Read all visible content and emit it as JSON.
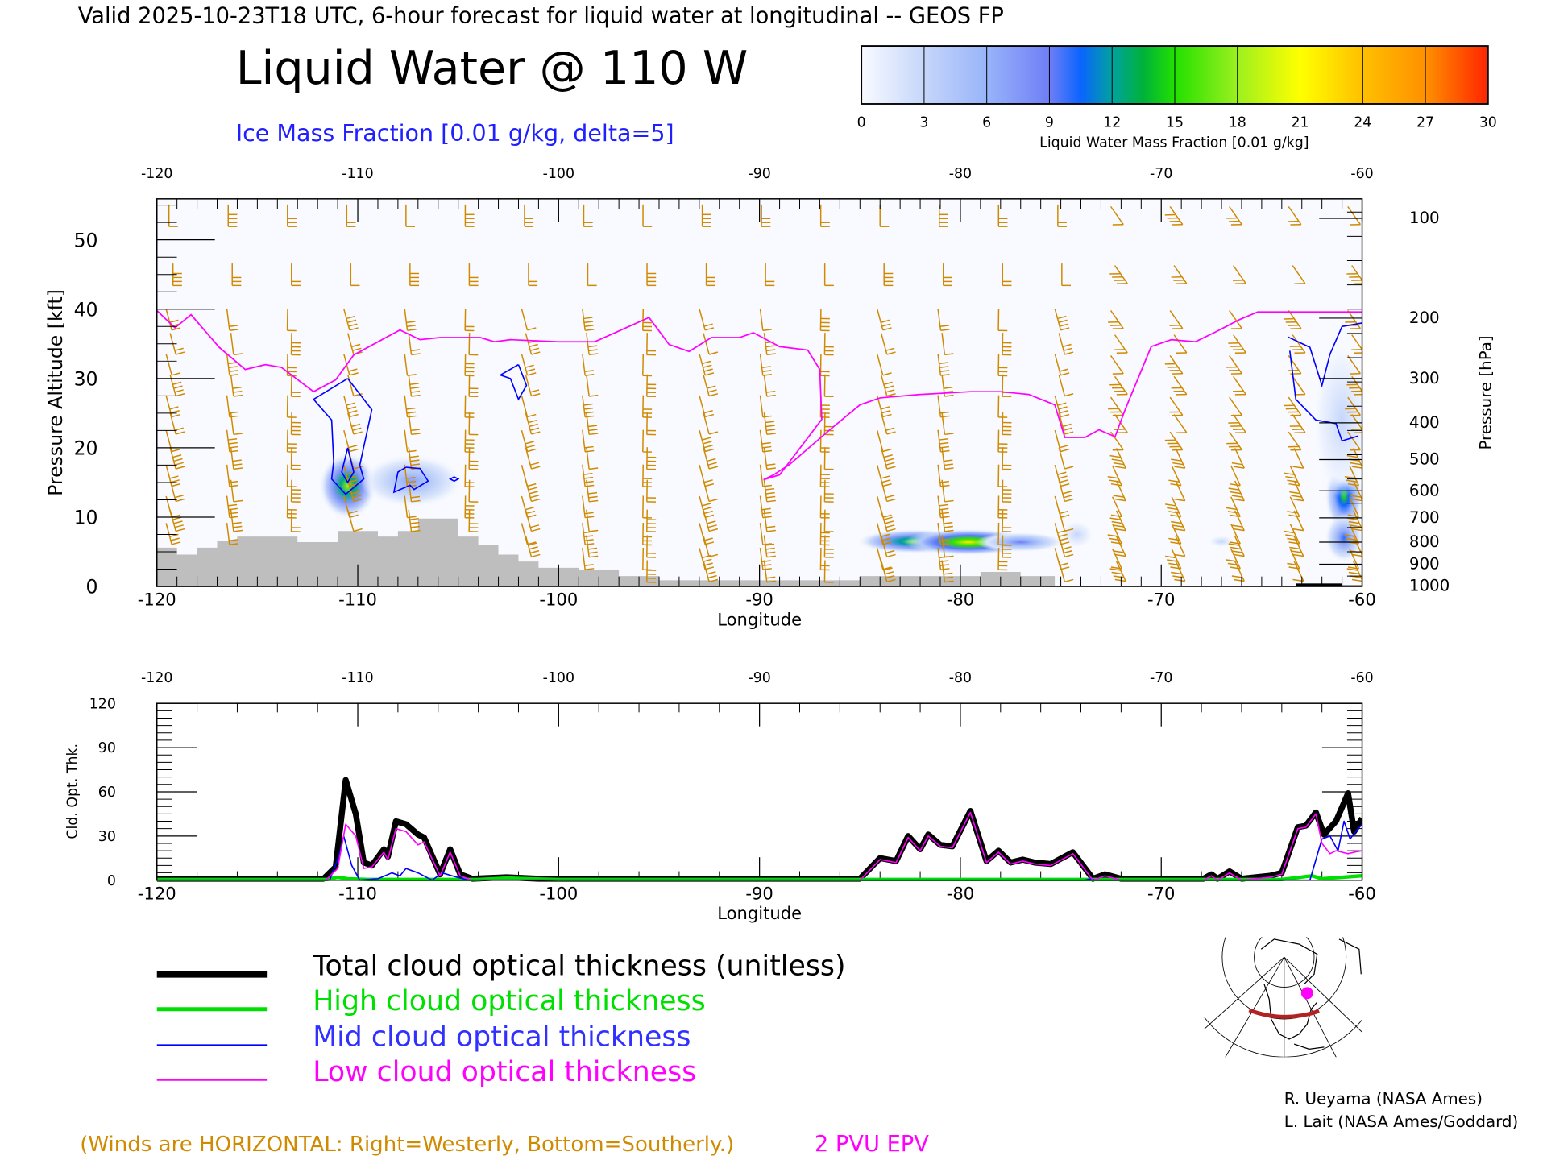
{
  "header": {
    "valid_line": "Valid 2025-10-23T18 UTC, 6-hour forecast for liquid water at longitudinal -- GEOS FP",
    "title": "Liquid Water @ 110 W",
    "subtitle": "Ice Mass Fraction [0.01 g/kg, delta=5]"
  },
  "colorbar": {
    "ticks": [
      "0",
      "3",
      "6",
      "9",
      "12",
      "15",
      "18",
      "21",
      "24",
      "27",
      "30"
    ],
    "label": "Liquid Water Mass Fraction [0.01 g/kg]",
    "stops": [
      {
        "v": 0,
        "c": "#f8faff"
      },
      {
        "v": 3,
        "c": "#c6d6fa"
      },
      {
        "v": 6,
        "c": "#98b4fa"
      },
      {
        "v": 9,
        "c": "#6f7ef6"
      },
      {
        "v": 10.5,
        "c": "#0a64ff"
      },
      {
        "v": 12,
        "c": "#00a2a0"
      },
      {
        "v": 13.5,
        "c": "#00b23a"
      },
      {
        "v": 15,
        "c": "#22e000"
      },
      {
        "v": 18,
        "c": "#9cf01e"
      },
      {
        "v": 21,
        "c": "#ffff00"
      },
      {
        "v": 24,
        "c": "#ffc000"
      },
      {
        "v": 27,
        "c": "#ff9000"
      },
      {
        "v": 30,
        "c": "#ff2400"
      }
    ]
  },
  "chart_data": [
    {
      "type": "heatmap",
      "title": "Liquid Water @ 110 W",
      "xlabel": "Longitude",
      "ylabel": "Pressure Altitude [kft]",
      "y2label": "Pressure [hPa]",
      "xlim": [
        -120,
        -60
      ],
      "ylim": [
        0,
        56
      ],
      "x_ticks": [
        "-120",
        "-110",
        "-100",
        "-90",
        "-80",
        "-70",
        "-60"
      ],
      "y_ticks": [
        "0",
        "10",
        "20",
        "30",
        "40",
        "50"
      ],
      "pressure_ticks": [
        {
          "p": "100",
          "kft": 53.1
        },
        {
          "p": "200",
          "kft": 38.7
        },
        {
          "p": "300",
          "kft": 30.0
        },
        {
          "p": "400",
          "kft": 23.6
        },
        {
          "p": "500",
          "kft": 18.3
        },
        {
          "p": "600",
          "kft": 13.8
        },
        {
          "p": "700",
          "kft": 9.9
        },
        {
          "p": "800",
          "kft": 6.4
        },
        {
          "p": "900",
          "kft": 3.2
        },
        {
          "p": "1000",
          "kft": 0.1
        }
      ],
      "liquid_water_blobs": [
        {
          "lon": -110.5,
          "kft": 14.5,
          "dlon": 0.9,
          "dkft": 3.0,
          "peak": 18
        },
        {
          "lon": -107.3,
          "kft": 15.2,
          "dlon": 1.6,
          "dkft": 2.4,
          "peak": 7
        },
        {
          "lon": -82.3,
          "kft": 6.5,
          "dlon": 1.8,
          "dkft": 1.1,
          "peak": 17
        },
        {
          "lon": -79.6,
          "kft": 6.4,
          "dlon": 2.0,
          "dkft": 1.2,
          "peak": 22
        },
        {
          "lon": -77.0,
          "kft": 6.4,
          "dlon": 1.4,
          "dkft": 0.9,
          "peak": 9
        },
        {
          "lon": -74.2,
          "kft": 7.5,
          "dlon": 0.5,
          "dkft": 1.2,
          "peak": 3
        },
        {
          "lon": -67.0,
          "kft": 6.5,
          "dlon": 0.4,
          "dkft": 0.5,
          "peak": 3
        },
        {
          "lon": -60.9,
          "kft": 13.0,
          "dlon": 0.6,
          "dkft": 3.2,
          "peak": 15
        },
        {
          "lon": -60.9,
          "kft": 7.0,
          "dlon": 0.6,
          "dkft": 2.2,
          "peak": 10
        },
        {
          "lon": -61.0,
          "kft": 24.0,
          "dlon": 0.9,
          "dkft": 7.0,
          "peak": 3
        }
      ],
      "ice_contours": [
        [
          [
            -110.5,
            30
          ],
          [
            -109.3,
            25.5
          ],
          [
            -109.9,
            17.5
          ],
          [
            -109.7,
            15.5
          ],
          [
            -110.6,
            13.3
          ],
          [
            -111.3,
            15.5
          ],
          [
            -111.2,
            18
          ],
          [
            -111.3,
            24
          ],
          [
            -112.2,
            27
          ],
          [
            -110.5,
            30
          ]
        ],
        [
          [
            -110.5,
            20
          ],
          [
            -110.2,
            16.5
          ],
          [
            -110.5,
            15
          ],
          [
            -110.8,
            16.5
          ],
          [
            -110.5,
            20
          ]
        ],
        [
          [
            -107.6,
            17.2
          ],
          [
            -106.9,
            17.0
          ],
          [
            -106.5,
            15.2
          ],
          [
            -107.2,
            14.0
          ],
          [
            -107.4,
            14.6
          ],
          [
            -108.2,
            13.6
          ],
          [
            -108.0,
            16.5
          ],
          [
            -107.6,
            17.2
          ]
        ],
        [
          [
            -105.2,
            15.8
          ],
          [
            -105.0,
            15.5
          ],
          [
            -105.2,
            15.2
          ],
          [
            -105.4,
            15.5
          ],
          [
            -105.2,
            15.8
          ]
        ],
        [
          [
            -102.0,
            32.0
          ],
          [
            -101.6,
            29.0
          ],
          [
            -102.0,
            27.0
          ],
          [
            -102.4,
            30.0
          ],
          [
            -102.9,
            30.5
          ],
          [
            -102.0,
            32.0
          ]
        ],
        [
          [
            -63.7,
            36.0
          ],
          [
            -62.6,
            34.5
          ],
          [
            -62.0,
            29.0
          ],
          [
            -61.6,
            33.5
          ],
          [
            -61.0,
            37.5
          ],
          [
            -60.0,
            38.0
          ]
        ],
        [
          [
            -63.6,
            34.0
          ],
          [
            -63.3,
            27.0
          ],
          [
            -62.3,
            24.0
          ],
          [
            -61.3,
            23.5
          ],
          [
            -61.0,
            21.0
          ],
          [
            -60.2,
            21.7
          ]
        ]
      ],
      "pv_2pvu_line": [
        [
          -120,
          39.8
        ],
        [
          -119.1,
          37.3
        ],
        [
          -118.3,
          39.2
        ],
        [
          -116.9,
          34.5
        ],
        [
          -115.6,
          31.3
        ],
        [
          -114.6,
          32.0
        ],
        [
          -113.8,
          31.6
        ],
        [
          -112.2,
          28.1
        ],
        [
          -111.1,
          29.8
        ],
        [
          -110.2,
          33.4
        ],
        [
          -107.9,
          37.0
        ],
        [
          -106.9,
          35.6
        ],
        [
          -105.9,
          35.9
        ],
        [
          -103.9,
          35.9
        ],
        [
          -103.2,
          35.3
        ],
        [
          -102.4,
          35.6
        ],
        [
          -100.0,
          35.3
        ],
        [
          -98.2,
          35.3
        ],
        [
          -97.5,
          36.2
        ],
        [
          -95.5,
          38.8
        ],
        [
          -94.5,
          34.9
        ],
        [
          -93.5,
          33.9
        ],
        [
          -92.4,
          35.9
        ],
        [
          -91.0,
          35.9
        ],
        [
          -90.3,
          36.6
        ],
        [
          -89.0,
          34.6
        ],
        [
          -87.6,
          34.1
        ],
        [
          -87.0,
          31.3
        ],
        [
          -86.9,
          24.1
        ],
        [
          -89.0,
          16.1
        ],
        [
          -89.8,
          15.4
        ],
        [
          -89.3,
          16.1
        ],
        [
          -88.5,
          17.6
        ],
        [
          -86.5,
          22.6
        ],
        [
          -85.0,
          26.2
        ],
        [
          -84.0,
          27.2
        ],
        [
          -82.0,
          27.7
        ],
        [
          -79.5,
          28.1
        ],
        [
          -78.0,
          28.1
        ],
        [
          -76.6,
          27.7
        ],
        [
          -75.3,
          26.2
        ],
        [
          -74.8,
          21.5
        ],
        [
          -73.8,
          21.5
        ],
        [
          -73.1,
          22.6
        ],
        [
          -72.3,
          21.6
        ],
        [
          -71.8,
          25.5
        ],
        [
          -70.5,
          34.6
        ],
        [
          -69.5,
          35.6
        ],
        [
          -68.3,
          35.3
        ],
        [
          -67.3,
          36.7
        ],
        [
          -66.1,
          38.5
        ],
        [
          -65.2,
          39.6
        ],
        [
          -60.0,
          39.6
        ]
      ],
      "terrain_kft": {
        "lon": [
          -120,
          -119,
          -118,
          -117,
          -116,
          -115,
          -114,
          -113,
          -112,
          -111,
          -110,
          -109,
          -108,
          -107,
          -106,
          -105,
          -104,
          -103,
          -102,
          -101,
          -100,
          -99,
          -98,
          -97,
          -96,
          -95,
          -94,
          -86,
          -85,
          -80,
          -79,
          -77,
          -75.3
        ],
        "kft": [
          5.6,
          4.6,
          5.6,
          6.6,
          7.2,
          7.2,
          7.2,
          6.4,
          6.4,
          8.0,
          8.0,
          7.2,
          8.0,
          9.8,
          9.8,
          7.2,
          6.0,
          4.6,
          3.6,
          2.7,
          2.7,
          2.4,
          2.4,
          1.5,
          1.5,
          0.9,
          0.9,
          0.9,
          1.5,
          1.5,
          2.1,
          1.5,
          0
        ]
      }
    },
    {
      "type": "line",
      "xlabel": "Longitude",
      "ylabel": "Cld. Opt. Thk.",
      "xlim": [
        -120,
        -60
      ],
      "ylim": [
        0,
        120
      ],
      "x_ticks": [
        "-120",
        "-110",
        "-100",
        "-90",
        "-80",
        "-70",
        "-60"
      ],
      "y_ticks": [
        "0",
        "30",
        "60",
        "90",
        "120"
      ],
      "series": [
        {
          "name": "Total cloud optical thickness (unitless)",
          "color": "#000000",
          "x": [
            -120,
            -111.7,
            -111.1,
            -110.6,
            -110.1,
            -109.7,
            -109.3,
            -108.7,
            -108.5,
            -108.1,
            -107.6,
            -107.0,
            -106.7,
            -105.9,
            -105.4,
            -104.9,
            -104.3,
            -102.6,
            -101.0,
            -85.0,
            -84.0,
            -83.2,
            -82.6,
            -82.0,
            -81.6,
            -81.0,
            -80.4,
            -79.5,
            -78.7,
            -78.1,
            -77.5,
            -76.9,
            -76.3,
            -75.5,
            -74.4,
            -73.4,
            -72.8,
            -72.0,
            -67.9,
            -67.5,
            -67.2,
            -66.6,
            -66.0,
            -64.6,
            -64.0,
            -63.2,
            -62.8,
            -62.3,
            -61.9,
            -61.3,
            -60.7,
            -60.4,
            -60.0
          ],
          "y": [
            1,
            1,
            9,
            68,
            45,
            12,
            10,
            21,
            16,
            40,
            38,
            31,
            29,
            4,
            21,
            4,
            1,
            2,
            1,
            1,
            15,
            13,
            30,
            21,
            31,
            24,
            23,
            47,
            13,
            20,
            12,
            14,
            12,
            11,
            19,
            1,
            4,
            1,
            1,
            4,
            1,
            6,
            1,
            3,
            5,
            36,
            37,
            46,
            31,
            40,
            59,
            33,
            42
          ]
        },
        {
          "name": "High cloud optical thickness",
          "color": "#00e000",
          "x": [
            -120,
            -111.5,
            -111.0,
            -110.5,
            -109.5,
            -104.0,
            -102.5,
            -101.5,
            -100,
            -64.0,
            -62.5,
            -62.0,
            -61.0,
            -60.0
          ],
          "y": [
            0.5,
            0.5,
            2,
            1,
            0.5,
            0.5,
            1.5,
            1,
            0.5,
            0.5,
            3,
            1,
            2,
            3
          ]
        },
        {
          "name": "Mid cloud optical thickness",
          "color": "#0000ff",
          "x": [
            -120,
            -111.4,
            -110.9,
            -110.7,
            -110.3,
            -109.9,
            -109.0,
            -108.3,
            -107.9,
            -107.6,
            -107.0,
            -106.3,
            -105.8,
            -105.3,
            -104.5,
            -73.8,
            -73.5,
            -73.2,
            -62.6,
            -62.0,
            -61.6,
            -61.2,
            -60.9,
            -60.6,
            -60.2,
            -60.0
          ],
          "y": [
            0,
            0,
            18,
            30,
            10,
            0,
            1,
            5,
            3,
            8,
            5,
            0,
            5,
            3,
            0,
            0,
            1,
            0,
            0,
            28,
            30,
            20,
            40,
            28,
            35,
            38
          ]
        },
        {
          "name": "Low cloud optical thickness",
          "color": "#ff00ff",
          "x": [
            -120,
            -111.6,
            -111.0,
            -110.6,
            -110.1,
            -109.7,
            -109.3,
            -108.7,
            -108.5,
            -108.1,
            -107.6,
            -107.0,
            -106.7,
            -105.9,
            -105.4,
            -104.9,
            -104.3,
            -85.0,
            -84.0,
            -83.2,
            -82.6,
            -82.0,
            -81.6,
            -81.0,
            -80.4,
            -79.5,
            -78.7,
            -78.1,
            -77.5,
            -76.9,
            -76.3,
            -75.5,
            -74.4,
            -73.4,
            -72.8,
            -72.0,
            -67.9,
            -67.5,
            -67.2,
            -66.6,
            -66.0,
            -64.6,
            -64.0,
            -63.2,
            -62.8,
            -62.3,
            -62.0,
            -61.6,
            -61.3,
            -60.7,
            -60.4,
            -60.0
          ],
          "y": [
            0,
            0,
            8,
            38,
            30,
            8,
            9,
            19,
            14,
            35,
            33,
            24,
            26,
            3,
            19,
            3,
            0,
            0,
            14,
            12,
            29,
            20,
            30,
            23,
            22,
            46,
            12,
            19,
            11,
            13,
            11,
            10,
            18,
            0,
            3,
            0,
            0,
            3,
            0,
            5,
            0,
            2,
            4,
            35,
            36,
            45,
            25,
            18,
            20,
            18,
            19,
            20
          ]
        }
      ]
    }
  ],
  "axes_text": {
    "main_xlabel": "Longitude",
    "main_ylabel": "Pressure Altitude [kft]",
    "main_y2label": "Pressure [hPa]",
    "sub_xlabel": "Longitude",
    "sub_ylabel": "Cld. Opt. Thk."
  },
  "legend": [
    {
      "label": "Total cloud optical thickness (unitless)",
      "color": "#000000"
    },
    {
      "label": "High cloud optical thickness",
      "color": "#00e000"
    },
    {
      "label": "Mid cloud optical thickness",
      "color": "#0000ff"
    },
    {
      "label": "Low cloud optical thickness",
      "color": "#ff00ff"
    }
  ],
  "footer": {
    "winds_note": "(Winds are HORIZONTAL: Right=Westerly, Bottom=Southerly.)",
    "pv_label": "2 PVU EPV",
    "credit1": "R. Ueyama (NASA Ames)",
    "credit2": "L. Lait (NASA Ames/Goddard)"
  },
  "colors": {
    "wind": "#d08a00",
    "pv": "#ff00ff",
    "ice": "#0000ff",
    "terrain": "#bebebe",
    "plot_bg": "#f8faff",
    "section_line": "#b22222"
  }
}
